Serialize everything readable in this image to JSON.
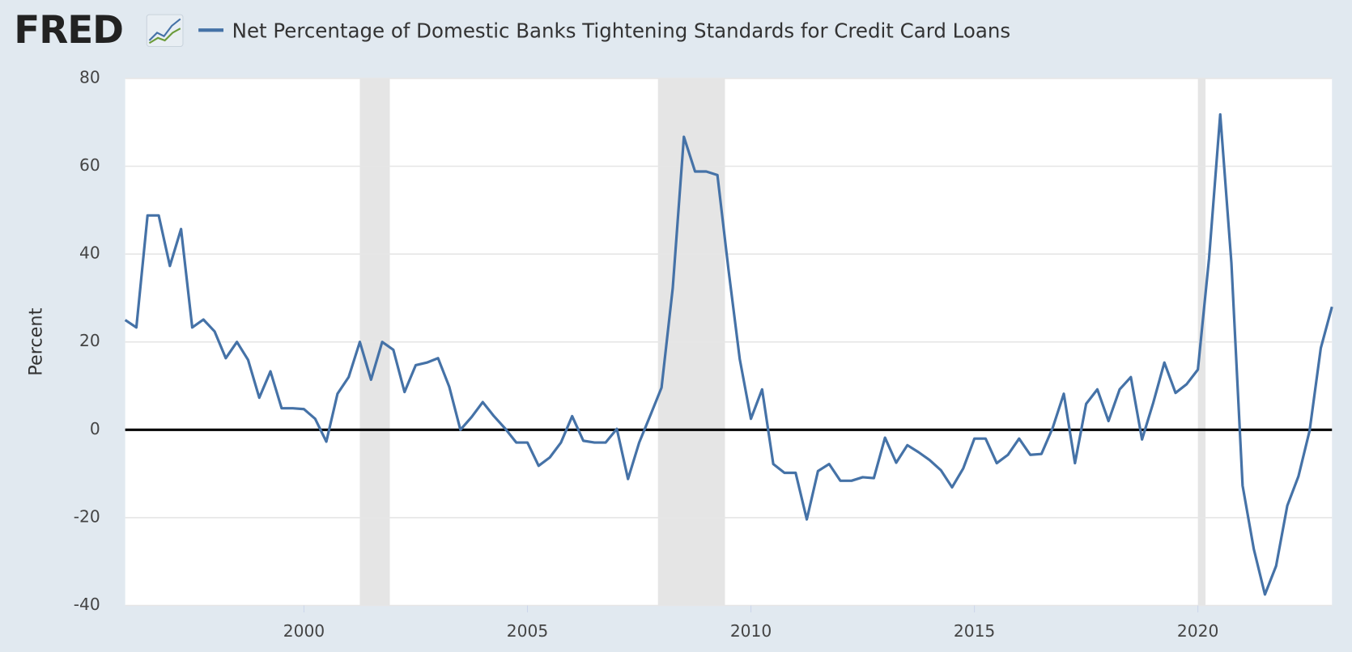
{
  "brand": "FRED",
  "chart_data": {
    "type": "line",
    "y_label": "Percent",
    "x": [
      1996,
      1996.25,
      1996.5,
      1996.75,
      1997,
      1997.25,
      1997.5,
      1997.75,
      1998,
      1998.25,
      1998.5,
      1998.75,
      1999,
      1999.25,
      1999.5,
      1999.75,
      2000,
      2000.25,
      2000.5,
      2000.75,
      2001,
      2001.25,
      2001.5,
      2001.75,
      2002,
      2002.25,
      2002.5,
      2002.75,
      2003,
      2003.25,
      2003.5,
      2003.75,
      2004,
      2004.25,
      2004.5,
      2004.75,
      2005,
      2005.25,
      2005.5,
      2005.75,
      2006,
      2006.25,
      2006.5,
      2006.75,
      2007,
      2007.25,
      2007.5,
      2007.75,
      2008,
      2008.25,
      2008.5,
      2008.75,
      2009,
      2009.25,
      2009.5,
      2009.75,
      2010,
      2010.25,
      2010.5,
      2010.75,
      2011,
      2011.25,
      2011.5,
      2011.75,
      2012,
      2012.25,
      2012.5,
      2012.75,
      2013,
      2013.25,
      2013.5,
      2013.75,
      2014,
      2014.25,
      2014.5,
      2014.75,
      2015,
      2015.25,
      2015.5,
      2015.75,
      2016,
      2016.25,
      2016.5,
      2016.75,
      2017,
      2017.25,
      2017.5,
      2017.75,
      2018,
      2018.25,
      2018.5,
      2018.75,
      2019,
      2019.25,
      2019.5,
      2019.75,
      2020,
      2020.25,
      2020.5,
      2020.75,
      2021,
      2021.25,
      2021.5,
      2021.75,
      2022,
      2022.25,
      2022.5,
      2022.75,
      2023
    ],
    "series": [
      {
        "name": "Net Percentage of Domestic Banks Tightening Standards for Credit Card Loans",
        "color": "#4572a7",
        "values": [
          25,
          23.3,
          48.8,
          48.8,
          37.3,
          45.7,
          23.3,
          25.1,
          22.4,
          16.3,
          20,
          15.9,
          7.3,
          13.3,
          4.9,
          4.9,
          4.7,
          2.5,
          -2.7,
          8.2,
          12,
          20,
          11.4,
          20,
          18.2,
          8.6,
          14.7,
          15.3,
          16.3,
          9.8,
          0,
          2.9,
          6.3,
          3.1,
          0.3,
          -2.9,
          -2.9,
          -8.2,
          -6.3,
          -2.9,
          3.1,
          -2.5,
          -2.9,
          -2.9,
          0.2,
          -11.2,
          -2.9,
          3.3,
          9.6,
          32.2,
          66.7,
          58.8,
          58.8,
          58,
          36.3,
          16.1,
          2.5,
          9.2,
          -7.8,
          -9.8,
          -9.8,
          -20.4,
          -9.4,
          -7.8,
          -11.6,
          -11.6,
          -10.8,
          -11,
          -1.8,
          -7.5,
          -3.5,
          -5.1,
          -6.9,
          -9.2,
          -13.1,
          -8.8,
          -2,
          -2,
          -7.6,
          -5.7,
          -2,
          -5.7,
          -5.5,
          0.4,
          8.2,
          -7.6,
          5.9,
          9.2,
          2,
          9.2,
          12,
          -2.2,
          6.1,
          15.3,
          8.4,
          10.4,
          13.7,
          39,
          71.8,
          38,
          -12.7,
          -27.1,
          -37.5,
          -31,
          -17.3,
          -10.6,
          -0.2,
          18.6,
          28
        ]
      }
    ],
    "recessions": [
      [
        2001.25,
        2001.92
      ],
      [
        2007.92,
        2009.42
      ],
      [
        2020.0,
        2020.17
      ]
    ],
    "recession_color": "#e5e5e5",
    "xlim": [
      1996,
      2023
    ],
    "xticks": [
      2000,
      2005,
      2010,
      2015,
      2020
    ],
    "ylim": [
      -40,
      80
    ],
    "yticks": [
      80,
      60,
      40,
      20,
      0,
      -20,
      -40
    ],
    "grid": true,
    "zero_line": true
  }
}
